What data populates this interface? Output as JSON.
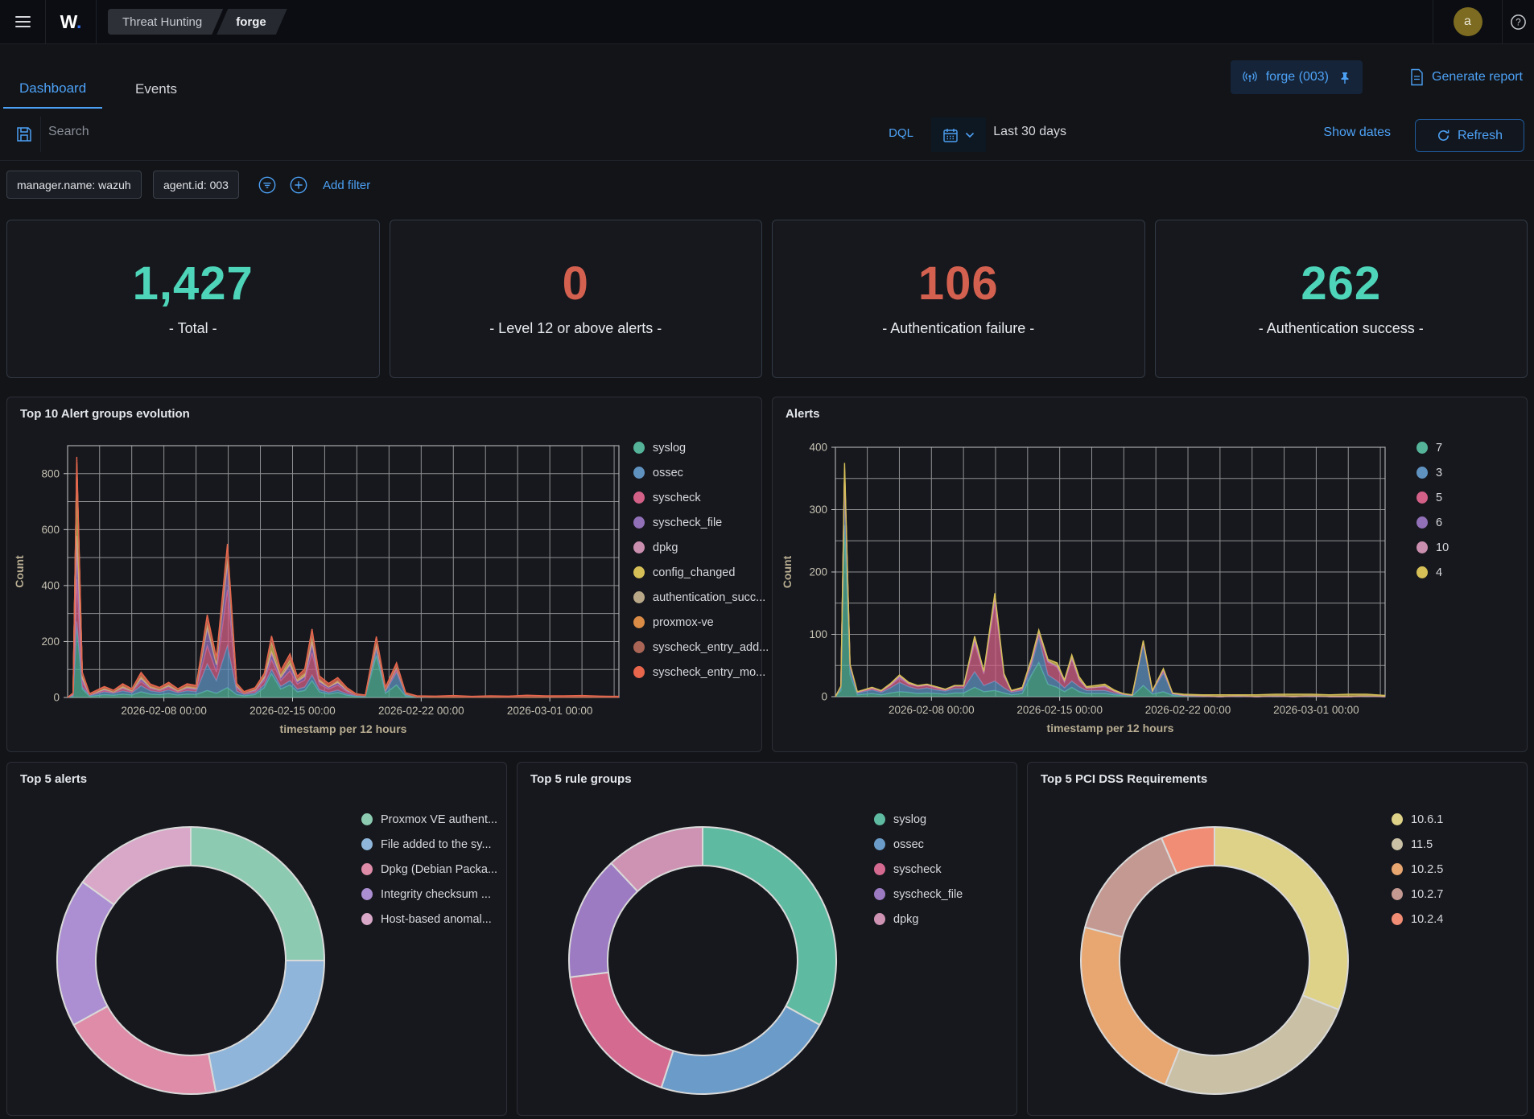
{
  "topbar": {
    "logo": "W",
    "logo_dot": ".",
    "breadcrumb1": "Threat Hunting",
    "breadcrumb2": "forge",
    "avatar_letter": "a",
    "help": "?"
  },
  "tabs": {
    "dashboard": "Dashboard",
    "events": "Events"
  },
  "header_actions": {
    "agent_chip": "forge (003)",
    "generate_report": "Generate report"
  },
  "searchbar": {
    "placeholder": "Search",
    "dql": "DQL",
    "time_range": "Last 30 days",
    "show_dates": "Show dates",
    "refresh": "Refresh"
  },
  "filters": {
    "pill1": "manager.name: wazuh",
    "pill2": "agent.id: 003",
    "add_filter": "Add filter"
  },
  "stats": [
    {
      "value": "1,427",
      "label": "- Total -",
      "color": "#4ED4B9"
    },
    {
      "value": "0",
      "label": "- Level 12 or above alerts -",
      "color": "#D4604F"
    },
    {
      "value": "106",
      "label": "- Authentication failure -",
      "color": "#D4604F"
    },
    {
      "value": "262",
      "label": "- Authentication success -",
      "color": "#4ED4B9"
    }
  ],
  "chart_data": [
    {
      "type": "area",
      "title": "Top 10 Alert groups evolution",
      "xlabel": "timestamp per 12 hours",
      "ylabel": "Count",
      "ylim": [
        0,
        900
      ],
      "yticks": [
        0,
        200,
        400,
        600,
        800
      ],
      "x_days": [
        0,
        0.3,
        0.5,
        0.8,
        1.2,
        2,
        2.5,
        3,
        3.5,
        4,
        4.5,
        5,
        5.5,
        6,
        6.5,
        7,
        7.6,
        8.1,
        8.7,
        9.2,
        9.6,
        10.2,
        10.7,
        11.1,
        11.6,
        12.1,
        12.5,
        12.9,
        13.3,
        13.7,
        14.2,
        14.7,
        15.2,
        15.7,
        16.2,
        16.8,
        17.3,
        17.9,
        18.4,
        19,
        20,
        21,
        22,
        23,
        24,
        25,
        26,
        27,
        28,
        29,
        30
      ],
      "xticks": [
        {
          "d": 5.24,
          "label": "2026-02-08 00:00"
        },
        {
          "d": 12.24,
          "label": "2026-02-15 00:00"
        },
        {
          "d": 19.24,
          "label": "2026-02-22 00:00"
        },
        {
          "d": 26.24,
          "label": "2026-03-01 00:00"
        }
      ],
      "series": [
        {
          "name": "syslog",
          "color": "#54B399",
          "values": [
            0,
            5,
            260,
            30,
            4,
            10,
            8,
            12,
            9,
            20,
            12,
            10,
            14,
            9,
            12,
            11,
            25,
            15,
            35,
            10,
            6,
            10,
            35,
            85,
            30,
            45,
            20,
            25,
            60,
            20,
            12,
            18,
            8,
            4,
            3,
            150,
            15,
            45,
            5,
            2,
            1,
            1,
            1,
            1,
            1,
            1,
            1,
            1,
            1,
            1,
            1
          ]
        },
        {
          "name": "ossec",
          "color": "#6092C0",
          "values": [
            0,
            2,
            12,
            8,
            3,
            10,
            7,
            12,
            8,
            22,
            12,
            9,
            13,
            8,
            12,
            10,
            95,
            45,
            150,
            12,
            5,
            6,
            10,
            15,
            10,
            15,
            10,
            12,
            20,
            8,
            6,
            8,
            5,
            2,
            1,
            20,
            6,
            45,
            4,
            1,
            0,
            0,
            0,
            0,
            0,
            0,
            0,
            0,
            0,
            0,
            0
          ]
        },
        {
          "name": "syscheck",
          "color": "#D36086",
          "values": [
            0,
            3,
            150,
            15,
            2,
            5,
            3,
            7,
            4,
            15,
            7,
            5,
            8,
            4,
            7,
            6,
            65,
            30,
            200,
            10,
            4,
            6,
            15,
            35,
            20,
            35,
            18,
            25,
            80,
            20,
            12,
            18,
            8,
            3,
            2,
            12,
            4,
            10,
            3,
            0,
            0,
            0,
            0,
            0,
            0,
            0,
            0,
            0,
            0,
            0,
            0
          ]
        },
        {
          "name": "syscheck_file",
          "color": "#9170B8",
          "values": [
            0,
            2,
            120,
            10,
            1,
            3,
            2,
            4,
            3,
            8,
            4,
            4,
            5,
            3,
            4,
            4,
            60,
            25,
            90,
            6,
            2,
            4,
            8,
            20,
            10,
            20,
            8,
            12,
            30,
            8,
            6,
            8,
            4,
            1,
            1,
            6,
            2,
            5,
            1,
            0,
            0,
            0,
            0,
            0,
            0,
            0,
            0,
            0,
            0,
            0,
            0
          ]
        },
        {
          "name": "dpkg",
          "color": "#CA8EAE",
          "values": [
            0,
            1,
            35,
            4,
            0,
            1,
            0,
            1,
            0,
            4,
            1,
            0,
            1,
            0,
            1,
            1,
            8,
            3,
            15,
            2,
            0,
            1,
            2,
            8,
            2,
            5,
            2,
            2,
            8,
            2,
            1,
            2,
            1,
            0,
            0,
            2,
            1,
            2,
            0,
            0,
            0,
            0,
            0,
            0,
            0,
            0,
            0,
            0,
            0,
            0,
            0
          ]
        },
        {
          "name": "config_changed",
          "color": "#D6BF57",
          "values": [
            0,
            2,
            250,
            12,
            1,
            1,
            0,
            1,
            0,
            2,
            1,
            0,
            1,
            0,
            1,
            1,
            5,
            2,
            10,
            2,
            0,
            2,
            6,
            35,
            10,
            15,
            6,
            8,
            20,
            5,
            2,
            4,
            2,
            0,
            0,
            2,
            1,
            2,
            0,
            0,
            0,
            0,
            0,
            0,
            0,
            0,
            0,
            0,
            0,
            0,
            0
          ]
        },
        {
          "name": "authentication_succ...",
          "color": "#B9A888",
          "values": [
            0,
            0,
            4,
            1,
            0,
            1,
            0,
            1,
            0,
            1,
            0,
            0,
            1,
            0,
            1,
            0,
            2,
            1,
            3,
            1,
            0,
            0,
            1,
            2,
            1,
            1,
            1,
            1,
            2,
            1,
            0,
            1,
            0,
            0,
            0,
            2,
            0,
            1,
            0,
            0,
            0,
            0,
            0,
            0,
            0,
            0,
            0,
            0,
            0,
            0,
            0
          ]
        },
        {
          "name": "proxmox-ve",
          "color": "#DA8B45",
          "values": [
            0,
            0,
            5,
            2,
            0,
            3,
            2,
            5,
            3,
            8,
            5,
            3,
            5,
            3,
            5,
            4,
            12,
            10,
            15,
            3,
            0,
            1,
            2,
            5,
            2,
            3,
            2,
            2,
            7,
            2,
            1,
            2,
            1,
            0,
            0,
            10,
            2,
            3,
            1,
            0,
            0,
            0,
            0,
            0,
            0,
            0,
            0,
            0,
            0,
            0,
            0
          ]
        },
        {
          "name": "syscheck_entry_add...",
          "color": "#AA6556",
          "values": [
            0,
            0,
            4,
            2,
            0,
            1,
            1,
            1,
            1,
            2,
            1,
            1,
            1,
            1,
            1,
            1,
            4,
            2,
            6,
            1,
            1,
            1,
            1,
            3,
            2,
            2,
            1,
            2,
            3,
            2,
            1,
            1,
            1,
            0,
            0,
            2,
            1,
            1,
            0,
            0,
            1,
            1,
            0,
            1,
            0,
            1,
            1,
            0,
            1,
            0,
            0
          ]
        },
        {
          "name": "syscheck_entry_mo...",
          "color": "#E7664C",
          "values": [
            0,
            1,
            20,
            6,
            3,
            4,
            3,
            5,
            3,
            8,
            5,
            4,
            5,
            3,
            5,
            5,
            20,
            10,
            25,
            4,
            3,
            4,
            6,
            12,
            10,
            15,
            8,
            13,
            15,
            9,
            9,
            9,
            5,
            3,
            2,
            12,
            5,
            10,
            3,
            3,
            3,
            5,
            3,
            4,
            4,
            6,
            4,
            5,
            5,
            4,
            3
          ]
        }
      ]
    },
    {
      "type": "area",
      "title": "Alerts",
      "xlabel": "timestamp per 12 hours",
      "ylabel": "Count",
      "ylim": [
        0,
        400
      ],
      "yticks": [
        0,
        100,
        200,
        300,
        400
      ],
      "x_days": [
        0,
        0.3,
        0.5,
        0.8,
        1.2,
        2,
        2.5,
        3,
        3.5,
        4,
        4.5,
        5,
        5.5,
        6,
        6.5,
        7,
        7.6,
        8.1,
        8.7,
        9.2,
        9.6,
        10.2,
        10.7,
        11.1,
        11.6,
        12.1,
        12.5,
        12.9,
        13.3,
        13.7,
        14.2,
        14.7,
        15.2,
        15.7,
        16.2,
        16.8,
        17.3,
        17.9,
        18.4,
        19,
        20,
        21,
        22,
        23,
        24,
        25,
        26,
        27,
        28,
        29,
        30
      ],
      "xticks": [
        {
          "d": 5.24,
          "label": "2026-02-08 00:00"
        },
        {
          "d": 12.24,
          "label": "2026-02-15 00:00"
        },
        {
          "d": 19.24,
          "label": "2026-02-22 00:00"
        },
        {
          "d": 26.24,
          "label": "2026-03-01 00:00"
        }
      ],
      "series": [
        {
          "name": "7",
          "color": "#54B399",
          "values": [
            0,
            10,
            275,
            35,
            3,
            5,
            3,
            6,
            8,
            7,
            5,
            6,
            5,
            4,
            6,
            6,
            15,
            8,
            10,
            6,
            3,
            5,
            35,
            55,
            20,
            15,
            8,
            15,
            8,
            5,
            5,
            5,
            3,
            2,
            1,
            18,
            4,
            8,
            2,
            1,
            1,
            0,
            1,
            0,
            1,
            0,
            1,
            0,
            0,
            1,
            0
          ]
        },
        {
          "name": "3",
          "color": "#6092C0",
          "values": [
            0,
            5,
            80,
            10,
            3,
            6,
            4,
            8,
            15,
            9,
            7,
            8,
            6,
            5,
            7,
            7,
            25,
            10,
            15,
            8,
            4,
            5,
            15,
            40,
            15,
            10,
            6,
            10,
            8,
            5,
            5,
            5,
            3,
            1,
            1,
            65,
            4,
            30,
            2,
            1,
            0,
            0,
            0,
            0,
            0,
            0,
            0,
            0,
            0,
            0,
            0
          ]
        },
        {
          "name": "5",
          "color": "#D36086",
          "values": [
            0,
            1,
            5,
            3,
            1,
            2,
            2,
            4,
            6,
            4,
            4,
            4,
            3,
            2,
            4,
            4,
            45,
            18,
            125,
            18,
            2,
            3,
            5,
            5,
            20,
            22,
            9,
            35,
            10,
            4,
            5,
            5,
            3,
            1,
            0,
            3,
            1,
            3,
            1,
            0,
            0,
            0,
            0,
            0,
            0,
            0,
            0,
            0,
            0,
            0,
            0
          ]
        },
        {
          "name": "6",
          "color": "#9170B8",
          "values": [
            0,
            0,
            2,
            1,
            0,
            1,
            0,
            1,
            2,
            1,
            1,
            1,
            1,
            0,
            0,
            0,
            5,
            2,
            5,
            1,
            0,
            0,
            1,
            1,
            1,
            1,
            1,
            1,
            1,
            0,
            0,
            1,
            0,
            0,
            0,
            1,
            0,
            1,
            0,
            0,
            0,
            0,
            0,
            0,
            0,
            0,
            0,
            0,
            0,
            0,
            0
          ]
        },
        {
          "name": "10",
          "color": "#CA8EAE",
          "values": [
            0,
            0,
            3,
            1,
            0,
            0,
            0,
            0,
            2,
            0,
            0,
            0,
            0,
            0,
            0,
            0,
            2,
            1,
            3,
            1,
            0,
            0,
            1,
            1,
            1,
            1,
            1,
            1,
            1,
            0,
            0,
            1,
            0,
            0,
            0,
            1,
            0,
            1,
            0,
            0,
            0,
            0,
            0,
            0,
            0,
            0,
            0,
            0,
            0,
            0,
            0
          ]
        },
        {
          "name": "4",
          "color": "#D6BF57",
          "values": [
            0,
            1,
            10,
            2,
            1,
            1,
            1,
            2,
            2,
            2,
            1,
            1,
            1,
            1,
            1,
            1,
            5,
            2,
            8,
            3,
            1,
            2,
            4,
            5,
            3,
            5,
            2,
            5,
            4,
            2,
            3,
            3,
            2,
            1,
            1,
            2,
            1,
            2,
            1,
            2,
            2,
            3,
            2,
            3,
            3,
            4,
            3,
            3,
            4,
            3,
            2
          ]
        }
      ]
    },
    {
      "type": "pie",
      "title": "Top 5 alerts",
      "labels": [
        "Proxmox VE authent...",
        "File added to the sy...",
        "Dpkg (Debian Packa...",
        "Integrity checksum ...",
        "Host-based anomal..."
      ],
      "values": [
        25,
        22,
        20,
        18,
        15
      ],
      "colors": [
        "#8CCBB2",
        "#8FB6DA",
        "#DE8CA8",
        "#AC8FD2",
        "#D9A8C8"
      ]
    },
    {
      "type": "pie",
      "title": "Top 5 rule groups",
      "labels": [
        "syslog",
        "ossec",
        "syscheck",
        "syscheck_file",
        "dpkg"
      ],
      "values": [
        33,
        22,
        18,
        15,
        12
      ],
      "colors": [
        "#5FBAA2",
        "#6B9CC9",
        "#D56A91",
        "#9C7BC3",
        "#CE93B3"
      ]
    },
    {
      "type": "pie",
      "title": "Top 5 PCI DSS Requirements",
      "labels": [
        "10.6.1",
        "11.5",
        "10.2.5",
        "10.2.7",
        "10.2.4"
      ],
      "values": [
        31,
        25,
        23,
        14.5,
        6.5
      ],
      "colors": [
        "#DED188",
        "#C9C0A5",
        "#E8A671",
        "#C49992",
        "#F28D75"
      ]
    }
  ]
}
